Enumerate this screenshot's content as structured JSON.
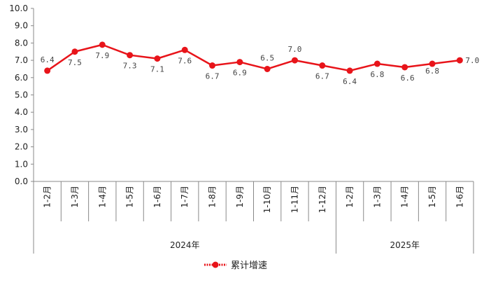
{
  "chart_data": {
    "type": "line",
    "categories": [
      "1-2月",
      "1-3月",
      "1-4月",
      "1-5月",
      "1-6月",
      "1-7月",
      "1-8月",
      "1-9月",
      "1-10月",
      "1-11月",
      "1-12月",
      "1-2月",
      "1-3月",
      "1-4月",
      "1-5月",
      "1-6月"
    ],
    "groups": [
      {
        "label": "2024年",
        "count": 11
      },
      {
        "label": "2025年",
        "count": 5
      }
    ],
    "series": [
      {
        "name": "累计增速",
        "color": "#e8141a",
        "values": [
          6.4,
          7.5,
          7.9,
          7.3,
          7.1,
          7.6,
          6.7,
          6.9,
          6.5,
          7.0,
          6.7,
          6.4,
          6.8,
          6.6,
          6.8,
          7.0
        ],
        "labels": [
          "6.4",
          "7.5",
          "7.9",
          "7.3",
          "7.1",
          "7.6",
          "6.7",
          "6.9",
          "6.5",
          "7.0",
          "6.7",
          "6.4",
          "6.8",
          "6.6",
          "6.8",
          "7.0"
        ]
      }
    ],
    "yticks": [
      "0.0",
      "1.0",
      "2.0",
      "3.0",
      "4.0",
      "5.0",
      "6.0",
      "7.0",
      "8.0",
      "9.0",
      "10.0"
    ],
    "ylim": [
      0,
      10
    ],
    "grid": false,
    "legend": "bottom-center"
  }
}
